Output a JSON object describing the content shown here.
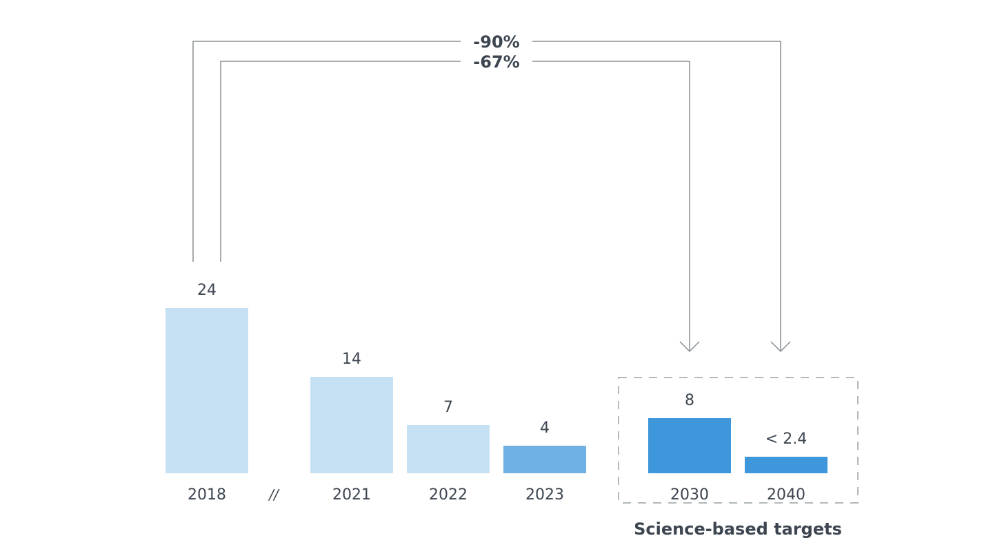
{
  "chart_data": {
    "type": "bar",
    "categories": [
      "2018",
      "2021",
      "2022",
      "2023",
      "2030",
      "2040"
    ],
    "values": [
      24,
      14,
      7,
      4,
      8,
      2.4
    ],
    "value_labels": [
      "24",
      "14",
      "7",
      "4",
      "8",
      "< 2.4"
    ],
    "axis_break_label": "//",
    "bar_colors": [
      "#c7e1f4",
      "#c7e1f4",
      "#c7e1f4",
      "#6fb1e4",
      "#3f97db",
      "#3f97db"
    ],
    "group": {
      "label": "Science-based targets",
      "categories": [
        "2030",
        "2040"
      ]
    },
    "reductions": [
      {
        "label": "-90%",
        "from": "2018",
        "to": "2040"
      },
      {
        "label": "-67%",
        "from": "2018",
        "to": "2030"
      }
    ],
    "title": "",
    "xlabel": "",
    "ylabel": "",
    "grid": false,
    "legend": "none"
  }
}
